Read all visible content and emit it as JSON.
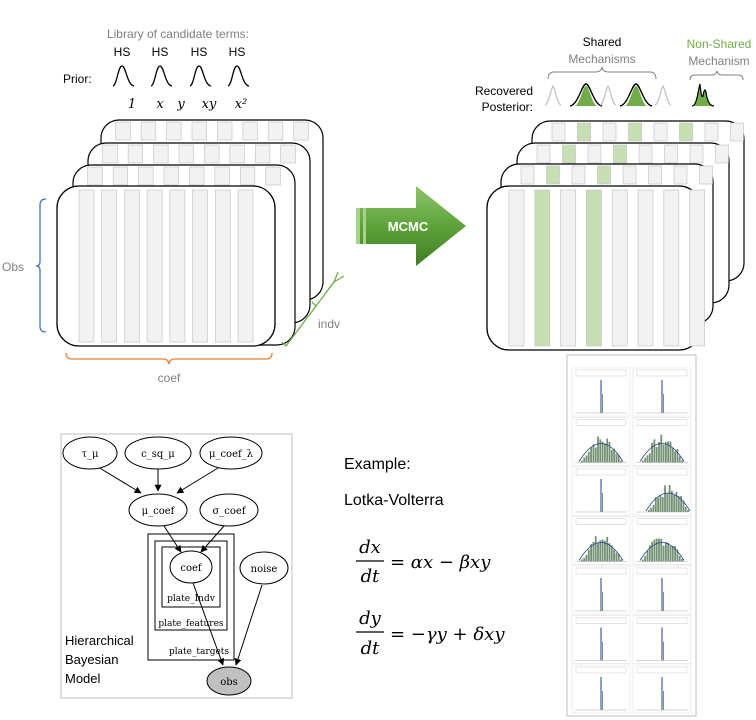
{
  "library": {
    "title": "Library of candidate terms:",
    "prior_label": "Prior:",
    "priors": [
      {
        "tag": "HS",
        "term": "1"
      },
      {
        "tag": "HS",
        "term": "x"
      },
      {
        "tag": "HS",
        "term": "y"
      },
      {
        "tag": "HS",
        "term": "xy"
      },
      {
        "tag": "HS",
        "term": "x²"
      }
    ]
  },
  "axes": {
    "obs": "Obs",
    "coef": "coef",
    "indv": "indv"
  },
  "arrow": {
    "label": "MCMC"
  },
  "posterior": {
    "shared_line1": "Shared",
    "shared_line2": "Mechanisms",
    "nonshared_line1": "Non-Shared",
    "nonshared_line2": "Mechanism",
    "recovered_line1": "Recovered",
    "recovered_line2": "Posterior:"
  },
  "colors": {
    "green_fill": "#c6e0b4",
    "green_text": "#70ad47",
    "arrow_green": "#5ea33a",
    "brace_orange": "#ed7d31",
    "brace_blue": "#4472c4",
    "brace_green": "#70ad47",
    "column_fill": "#f2f2f2",
    "obs_node_fill": "#c0c0c0"
  },
  "model": {
    "nodes": {
      "tau_mu": "τ_μ",
      "c_sq_mu": "c_sq_μ",
      "mu_coef_lambda": "μ_coef_λ",
      "mu_coef": "μ_coef",
      "sigma_coef": "σ_coef",
      "coef": "coef",
      "noise": "noise",
      "obs": "obs"
    },
    "plates": {
      "indv": "plate_Indv",
      "features": "plate_features",
      "targets": "plate_targets"
    },
    "caption": [
      "Hierarchical",
      "Bayesian",
      "Model"
    ]
  },
  "example": {
    "heading": "Example:",
    "name": "Lotka-Volterra",
    "eq1": {
      "num": "dx",
      "den": "dt",
      "rhs": "= αx − βxy"
    },
    "eq2": {
      "num": "dy",
      "den": "dt",
      "rhs": "= −γy + δxy"
    }
  }
}
